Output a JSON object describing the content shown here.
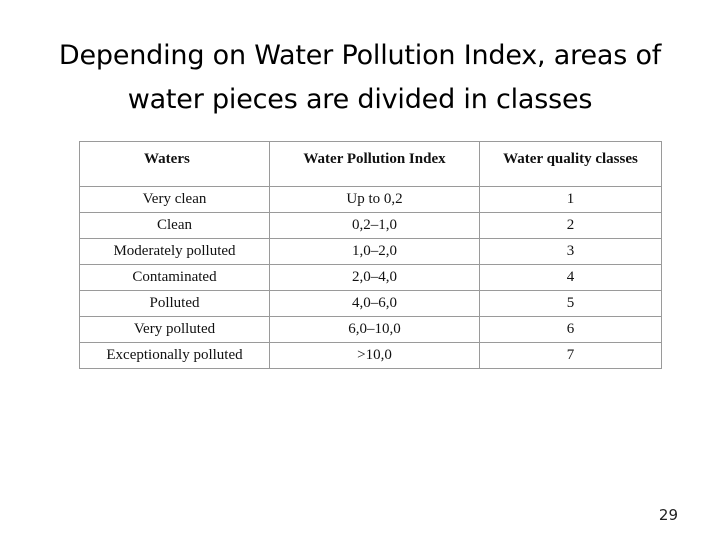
{
  "title": {
    "line1": "Depending on Water Pollution Index, areas of",
    "line2": "water pieces are divided in classes"
  },
  "table": {
    "headers": [
      "Waters",
      "Water Pollution Index",
      "Water quality classes"
    ],
    "rows": [
      [
        "Very clean",
        "Up to 0,2",
        "1"
      ],
      [
        "Clean",
        "0,2–1,0",
        "2"
      ],
      [
        "Moderately polluted",
        "1,0–2,0",
        "3"
      ],
      [
        "Contaminated",
        "2,0–4,0",
        "4"
      ],
      [
        "Polluted",
        "4,0–6,0",
        "5"
      ],
      [
        "Very polluted",
        "6,0–10,0",
        "6"
      ],
      [
        "Exceptionally polluted",
        ">10,0",
        "7"
      ]
    ]
  },
  "page_number": "29"
}
